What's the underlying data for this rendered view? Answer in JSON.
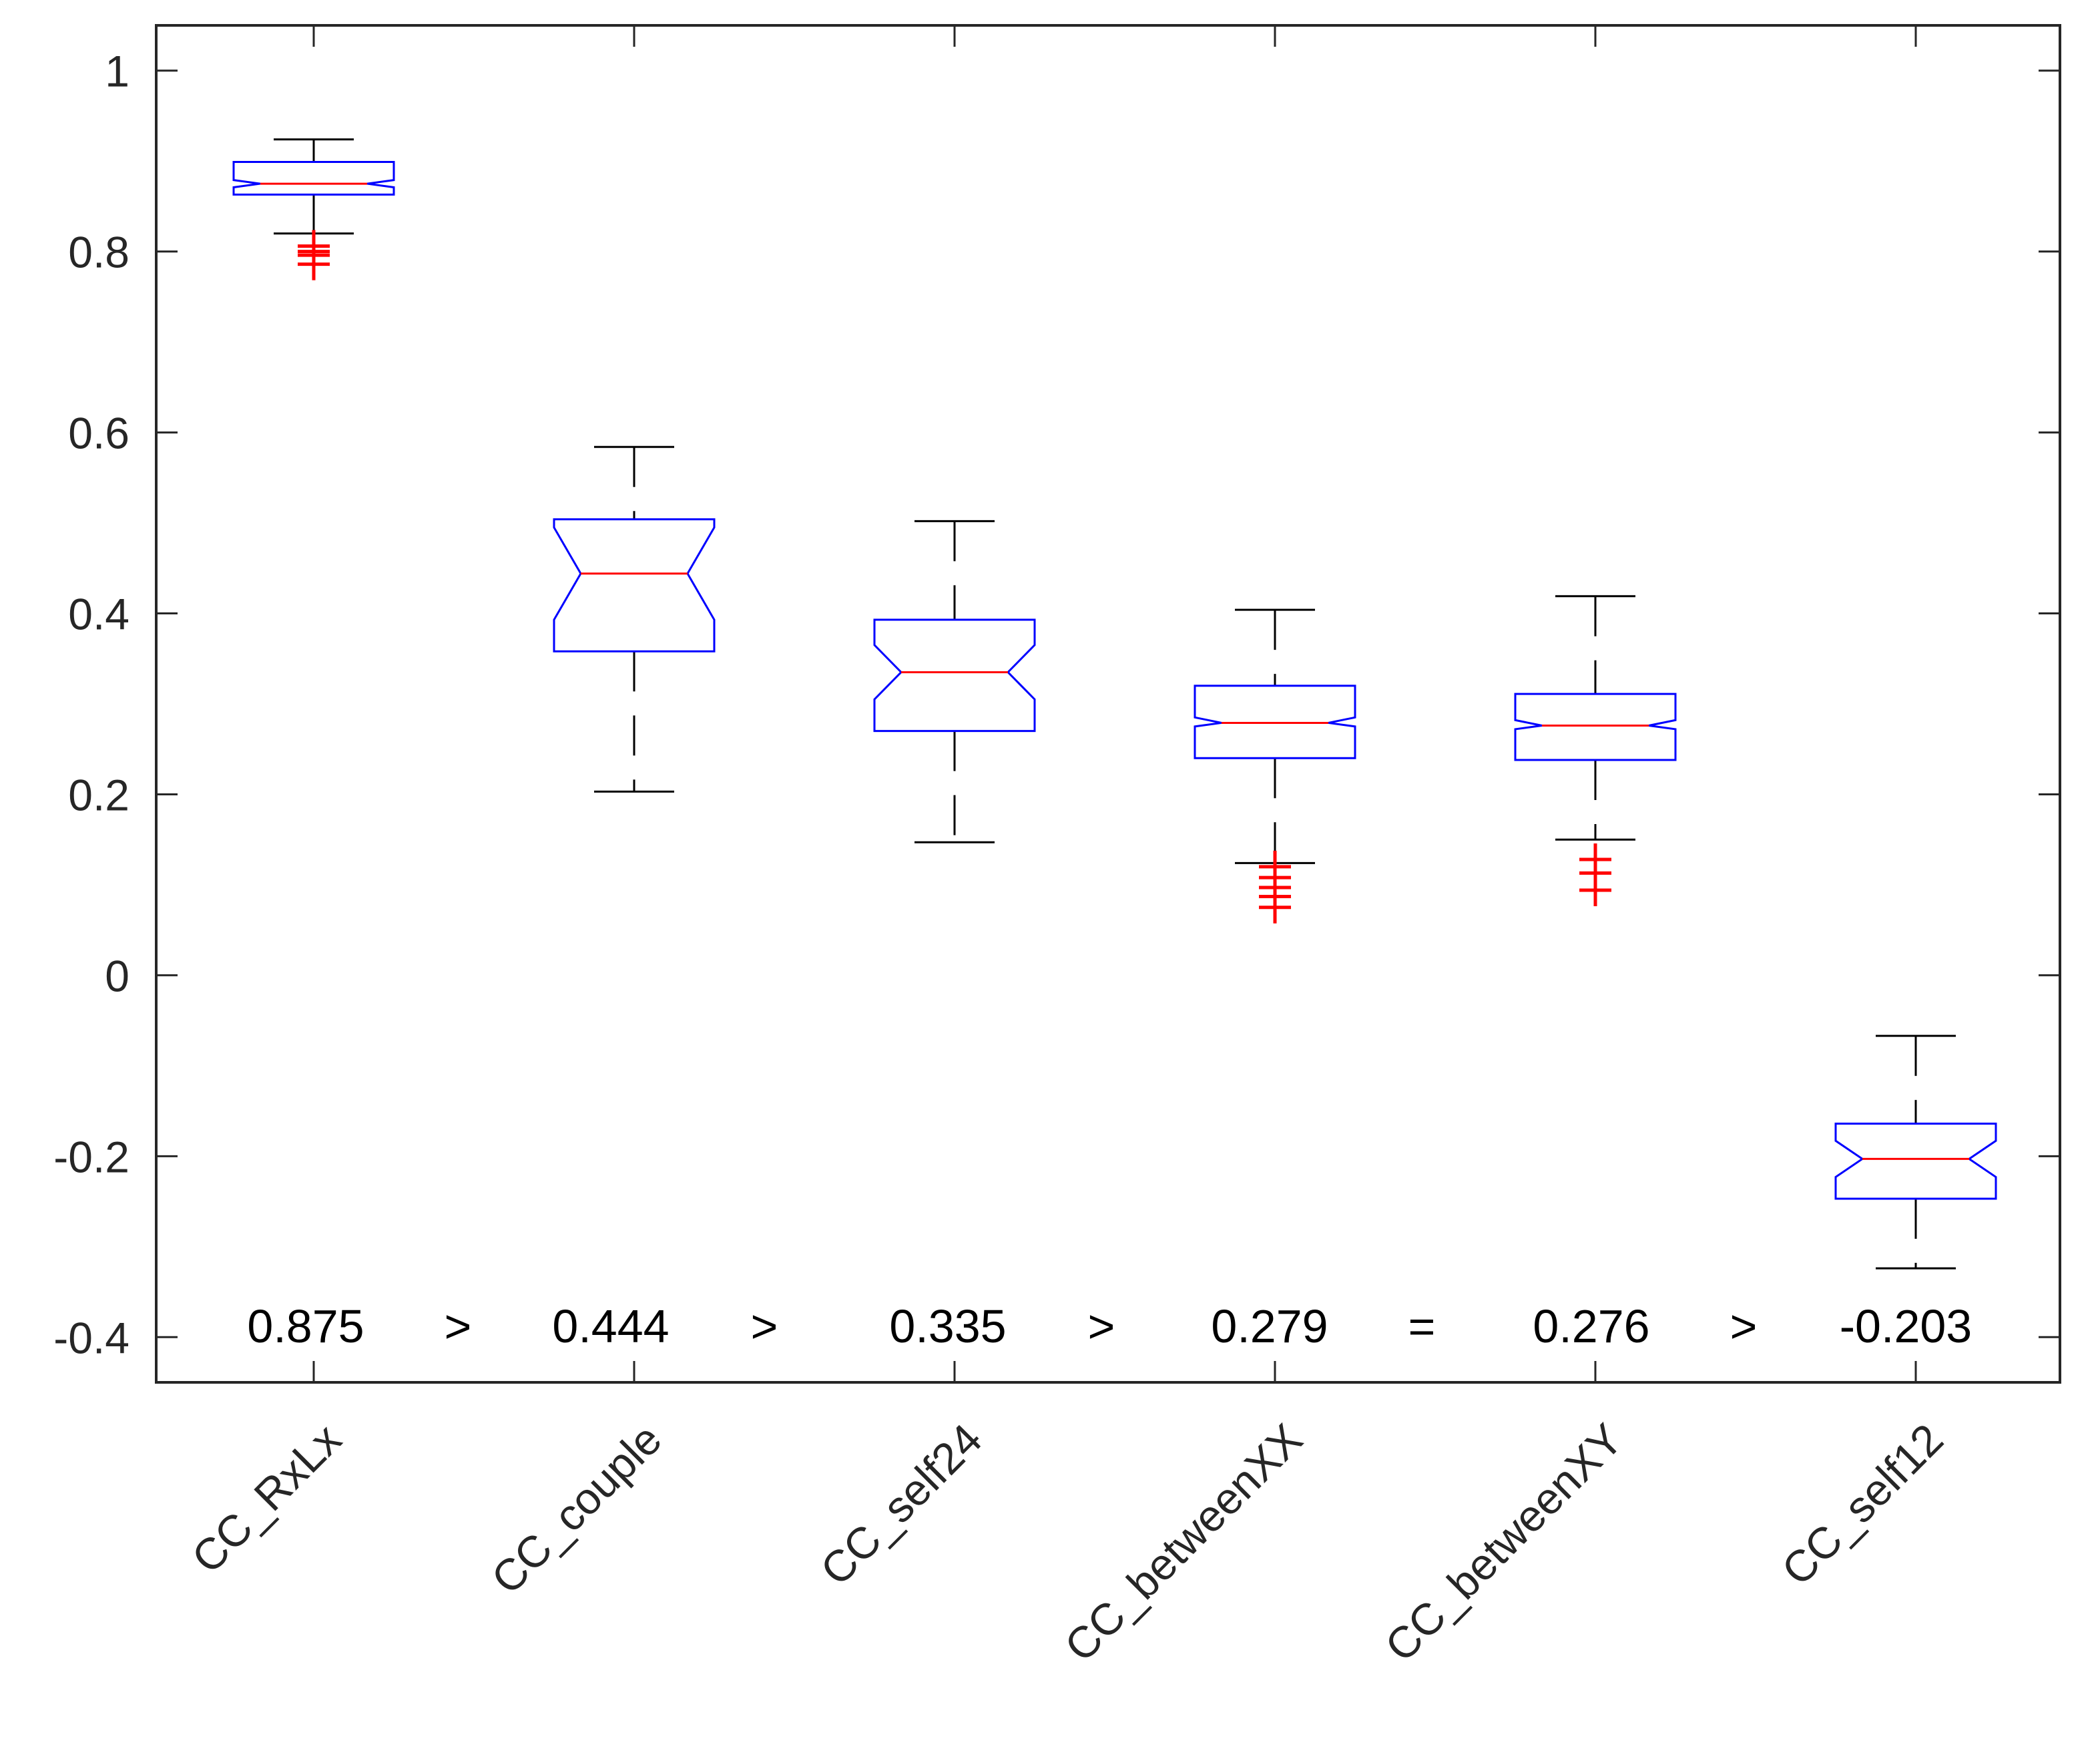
{
  "chart_data": {
    "type": "box",
    "notched": true,
    "title": "",
    "xlabel": "",
    "ylabel": "",
    "ylim": [
      -0.45,
      1.05
    ],
    "yticks": [
      -0.4,
      -0.2,
      0,
      0.2,
      0.4,
      0.6,
      0.8,
      1
    ],
    "ytick_labels": [
      "-0.4",
      "-0.2",
      "0",
      "0.2",
      "0.4",
      "0.6",
      "0.8",
      "1"
    ],
    "grid": false,
    "colors": {
      "box": "#0000ff",
      "median": "#ff0000",
      "whisker": "#000000",
      "outlier": "#ff0000",
      "axis": "#262626"
    },
    "categories": [
      "CC_RxLx",
      "CC_couple",
      "CC_self24",
      "CC_betweenXX",
      "CC_betweenXY",
      "CC_self12"
    ],
    "boxes": [
      {
        "median": 0.875,
        "q1": 0.863,
        "q3": 0.899,
        "whisker_low": 0.82,
        "whisker_high": 0.924,
        "notch_low": 0.871,
        "notch_high": 0.879,
        "outliers": [
          0.806,
          0.8,
          0.796,
          0.786
        ]
      },
      {
        "median": 0.444,
        "q1": 0.358,
        "q3": 0.504,
        "whisker_low": 0.203,
        "whisker_high": 0.584,
        "notch_low": 0.393,
        "notch_high": 0.495,
        "outliers": []
      },
      {
        "median": 0.335,
        "q1": 0.27,
        "q3": 0.393,
        "whisker_low": 0.147,
        "whisker_high": 0.502,
        "notch_low": 0.305,
        "notch_high": 0.365,
        "outliers": []
      },
      {
        "median": 0.279,
        "q1": 0.24,
        "q3": 0.32,
        "whisker_low": 0.124,
        "whisker_high": 0.404,
        "notch_low": 0.275,
        "notch_high": 0.285,
        "outliers": [
          0.12,
          0.108,
          0.097,
          0.087,
          0.075
        ]
      },
      {
        "median": 0.276,
        "q1": 0.238,
        "q3": 0.311,
        "whisker_low": 0.15,
        "whisker_high": 0.419,
        "notch_low": 0.272,
        "notch_high": 0.282,
        "outliers": [
          0.128,
          0.113,
          0.094
        ]
      },
      {
        "median": -0.203,
        "q1": -0.247,
        "q3": -0.164,
        "whisker_low": -0.324,
        "whisker_high": -0.067,
        "notch_low": -0.223,
        "notch_high": -0.183,
        "outliers": []
      }
    ],
    "annotation_row": {
      "y": -0.388,
      "values": [
        "0.875",
        "0.444",
        "0.335",
        "0.279",
        "0.276",
        "-0.203"
      ],
      "operators": [
        ">",
        ">",
        ">",
        "=",
        ">"
      ]
    }
  }
}
